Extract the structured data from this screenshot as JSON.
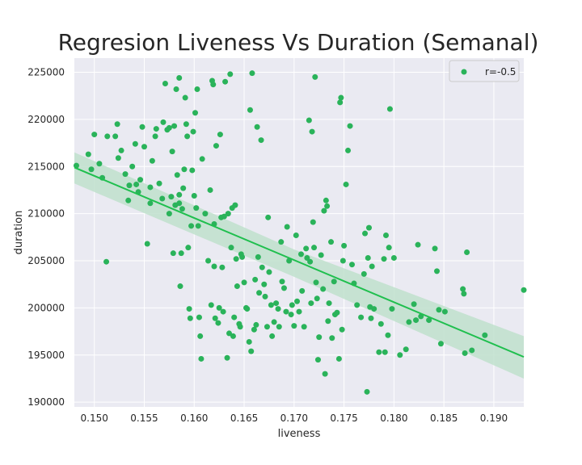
{
  "chart_data": {
    "type": "scatter",
    "title": "Regresion Liveness Vs Duration (Semanal)",
    "xlabel": "liveness",
    "ylabel": "duration",
    "xlim": [
      0.148,
      0.193
    ],
    "ylim": [
      189500,
      226500
    ],
    "xticks": [
      0.15,
      0.155,
      0.16,
      0.165,
      0.17,
      0.175,
      0.18,
      0.185,
      0.19
    ],
    "xtick_labels": [
      "0.150",
      "0.155",
      "0.160",
      "0.165",
      "0.170",
      "0.175",
      "0.180",
      "0.185",
      "0.190"
    ],
    "yticks": [
      190000,
      195000,
      200000,
      205000,
      210000,
      215000,
      220000,
      225000
    ],
    "ytick_labels": [
      "190000",
      "195000",
      "200000",
      "205000",
      "210000",
      "215000",
      "220000",
      "225000"
    ],
    "grid": true,
    "legend": {
      "position": "upper-right",
      "entries": [
        "r=-0.5"
      ]
    },
    "colors": {
      "points": "#2ab35a",
      "line": "#1fbf4e",
      "band": "#bfe0cc",
      "axes_bg": "#eaeaf2",
      "grid": "#ffffff"
    },
    "regression": {
      "x": [
        0.148,
        0.193
      ],
      "y": [
        214900,
        194800
      ]
    },
    "ci_band": {
      "x": [
        0.148,
        0.17,
        0.193
      ],
      "upper": [
        216500,
        206200,
        197000
      ],
      "lower": [
        213200,
        203300,
        192500
      ]
    },
    "series": [
      {
        "name": "r=-0.5",
        "points": [
          [
            0.1482,
            215100
          ],
          [
            0.1494,
            216300
          ],
          [
            0.1497,
            214700
          ],
          [
            0.15,
            218400
          ],
          [
            0.1505,
            215300
          ],
          [
            0.1508,
            213800
          ],
          [
            0.1512,
            204900
          ],
          [
            0.1513,
            218200
          ],
          [
            0.1521,
            218200
          ],
          [
            0.1523,
            219500
          ],
          [
            0.1524,
            215900
          ],
          [
            0.1527,
            216700
          ],
          [
            0.1531,
            214200
          ],
          [
            0.1534,
            211400
          ],
          [
            0.1535,
            213000
          ],
          [
            0.1538,
            215000
          ],
          [
            0.1541,
            217400
          ],
          [
            0.1542,
            213100
          ],
          [
            0.1544,
            212300
          ],
          [
            0.1546,
            213600
          ],
          [
            0.1548,
            219200
          ],
          [
            0.155,
            217100
          ],
          [
            0.1553,
            206800
          ],
          [
            0.1556,
            212800
          ],
          [
            0.1556,
            211100
          ],
          [
            0.1558,
            215600
          ],
          [
            0.1561,
            218200
          ],
          [
            0.1562,
            219000
          ],
          [
            0.1565,
            213200
          ],
          [
            0.1568,
            211600
          ],
          [
            0.1569,
            219700
          ],
          [
            0.1571,
            223800
          ],
          [
            0.1573,
            218900
          ],
          [
            0.1575,
            210000
          ],
          [
            0.1575,
            219100
          ],
          [
            0.1577,
            211800
          ],
          [
            0.1578,
            216600
          ],
          [
            0.1579,
            205800
          ],
          [
            0.158,
            219300
          ],
          [
            0.1581,
            210900
          ],
          [
            0.1582,
            223200
          ],
          [
            0.1583,
            214100
          ],
          [
            0.1585,
            212000
          ],
          [
            0.1585,
            211100
          ],
          [
            0.1585,
            224400
          ],
          [
            0.1586,
            202300
          ],
          [
            0.1587,
            205800
          ],
          [
            0.1588,
            210500
          ],
          [
            0.1589,
            212700
          ],
          [
            0.159,
            214700
          ],
          [
            0.1591,
            222300
          ],
          [
            0.1592,
            219500
          ],
          [
            0.1593,
            218200
          ],
          [
            0.1594,
            206400
          ],
          [
            0.1595,
            199900
          ],
          [
            0.1596,
            198900
          ],
          [
            0.1597,
            208700
          ],
          [
            0.1598,
            214600
          ],
          [
            0.1599,
            218700
          ],
          [
            0.16,
            211900
          ],
          [
            0.1601,
            220700
          ],
          [
            0.1602,
            210600
          ],
          [
            0.1603,
            223200
          ],
          [
            0.1604,
            208700
          ],
          [
            0.1605,
            199000
          ],
          [
            0.1606,
            197000
          ],
          [
            0.1607,
            194600
          ],
          [
            0.1608,
            215800
          ],
          [
            0.1611,
            210000
          ],
          [
            0.1614,
            205000
          ],
          [
            0.1616,
            212500
          ],
          [
            0.1617,
            200300
          ],
          [
            0.1618,
            224100
          ],
          [
            0.1619,
            223700
          ],
          [
            0.162,
            208900
          ],
          [
            0.162,
            204400
          ],
          [
            0.1621,
            198900
          ],
          [
            0.1622,
            217200
          ],
          [
            0.1624,
            198400
          ],
          [
            0.1625,
            200000
          ],
          [
            0.1626,
            218400
          ],
          [
            0.1627,
            209600
          ],
          [
            0.1628,
            204300
          ],
          [
            0.1629,
            199600
          ],
          [
            0.163,
            209700
          ],
          [
            0.1631,
            224000
          ],
          [
            0.1633,
            194700
          ],
          [
            0.1634,
            210000
          ],
          [
            0.1635,
            197300
          ],
          [
            0.1636,
            224800
          ],
          [
            0.1637,
            206400
          ],
          [
            0.1638,
            210600
          ],
          [
            0.1639,
            197000
          ],
          [
            0.164,
            199000
          ],
          [
            0.1641,
            210900
          ],
          [
            0.1642,
            205200
          ],
          [
            0.1643,
            202300
          ],
          [
            0.1645,
            198300
          ],
          [
            0.1646,
            198000
          ],
          [
            0.1647,
            205700
          ],
          [
            0.1648,
            205400
          ],
          [
            0.165,
            202700
          ],
          [
            0.1652,
            200000
          ],
          [
            0.1653,
            199900
          ],
          [
            0.1655,
            196400
          ],
          [
            0.1656,
            221000
          ],
          [
            0.1657,
            195400
          ],
          [
            0.1658,
            224900
          ],
          [
            0.166,
            197700
          ],
          [
            0.1661,
            203000
          ],
          [
            0.1662,
            198200
          ],
          [
            0.1663,
            219200
          ],
          [
            0.1664,
            205400
          ],
          [
            0.1665,
            201600
          ],
          [
            0.1667,
            217800
          ],
          [
            0.1668,
            204300
          ],
          [
            0.167,
            202500
          ],
          [
            0.1671,
            201200
          ],
          [
            0.1673,
            198000
          ],
          [
            0.1674,
            209600
          ],
          [
            0.1675,
            203800
          ],
          [
            0.1677,
            200300
          ],
          [
            0.1678,
            197000
          ],
          [
            0.168,
            198500
          ],
          [
            0.1682,
            200500
          ],
          [
            0.1684,
            199900
          ],
          [
            0.1685,
            198000
          ],
          [
            0.1687,
            207000
          ],
          [
            0.1688,
            202800
          ],
          [
            0.169,
            202100
          ],
          [
            0.1692,
            199600
          ],
          [
            0.1693,
            208600
          ],
          [
            0.1695,
            205000
          ],
          [
            0.1697,
            199300
          ],
          [
            0.1698,
            200300
          ],
          [
            0.17,
            198100
          ],
          [
            0.1702,
            207700
          ],
          [
            0.1703,
            200700
          ],
          [
            0.1705,
            199600
          ],
          [
            0.1707,
            205700
          ],
          [
            0.1708,
            201800
          ],
          [
            0.171,
            198000
          ],
          [
            0.1712,
            206300
          ],
          [
            0.1713,
            205300
          ],
          [
            0.1715,
            219900
          ],
          [
            0.1716,
            204900
          ],
          [
            0.1717,
            200500
          ],
          [
            0.1718,
            218700
          ],
          [
            0.1719,
            209100
          ],
          [
            0.172,
            206400
          ],
          [
            0.1721,
            224500
          ],
          [
            0.1722,
            202700
          ],
          [
            0.1723,
            201000
          ],
          [
            0.1724,
            194500
          ],
          [
            0.1725,
            196900
          ],
          [
            0.1727,
            205600
          ],
          [
            0.1729,
            202000
          ],
          [
            0.173,
            210300
          ],
          [
            0.1731,
            193000
          ],
          [
            0.1732,
            211400
          ],
          [
            0.1733,
            210800
          ],
          [
            0.1734,
            198600
          ],
          [
            0.1735,
            200500
          ],
          [
            0.1737,
            207000
          ],
          [
            0.1738,
            196800
          ],
          [
            0.174,
            202800
          ],
          [
            0.1741,
            199300
          ],
          [
            0.1743,
            199500
          ],
          [
            0.1745,
            194600
          ],
          [
            0.1746,
            221800
          ],
          [
            0.1747,
            222300
          ],
          [
            0.1748,
            197700
          ],
          [
            0.1749,
            205000
          ],
          [
            0.175,
            206600
          ],
          [
            0.1752,
            213100
          ],
          [
            0.1754,
            216700
          ],
          [
            0.1756,
            219300
          ],
          [
            0.1758,
            204600
          ],
          [
            0.176,
            202600
          ],
          [
            0.1763,
            200300
          ],
          [
            0.1767,
            199000
          ],
          [
            0.177,
            203600
          ],
          [
            0.1771,
            207900
          ],
          [
            0.1773,
            191100
          ],
          [
            0.1774,
            205300
          ],
          [
            0.1775,
            208500
          ],
          [
            0.1776,
            200100
          ],
          [
            0.1777,
            198900
          ],
          [
            0.1778,
            204400
          ],
          [
            0.178,
            199900
          ],
          [
            0.1785,
            195300
          ],
          [
            0.1787,
            198300
          ],
          [
            0.179,
            205200
          ],
          [
            0.1791,
            195300
          ],
          [
            0.1792,
            207700
          ],
          [
            0.1794,
            197100
          ],
          [
            0.1795,
            206400
          ],
          [
            0.1796,
            221100
          ],
          [
            0.1798,
            199900
          ],
          [
            0.18,
            205300
          ],
          [
            0.1806,
            195000
          ],
          [
            0.1812,
            195600
          ],
          [
            0.1815,
            198500
          ],
          [
            0.182,
            200400
          ],
          [
            0.1822,
            198700
          ],
          [
            0.1824,
            206700
          ],
          [
            0.1827,
            199100
          ],
          [
            0.1835,
            198700
          ],
          [
            0.1841,
            206300
          ],
          [
            0.1843,
            203900
          ],
          [
            0.1845,
            199800
          ],
          [
            0.1847,
            196200
          ],
          [
            0.1851,
            199600
          ],
          [
            0.1869,
            202000
          ],
          [
            0.187,
            201500
          ],
          [
            0.1871,
            195200
          ],
          [
            0.1873,
            205900
          ],
          [
            0.1878,
            195500
          ],
          [
            0.1891,
            197100
          ],
          [
            0.193,
            201900
          ]
        ]
      }
    ]
  }
}
